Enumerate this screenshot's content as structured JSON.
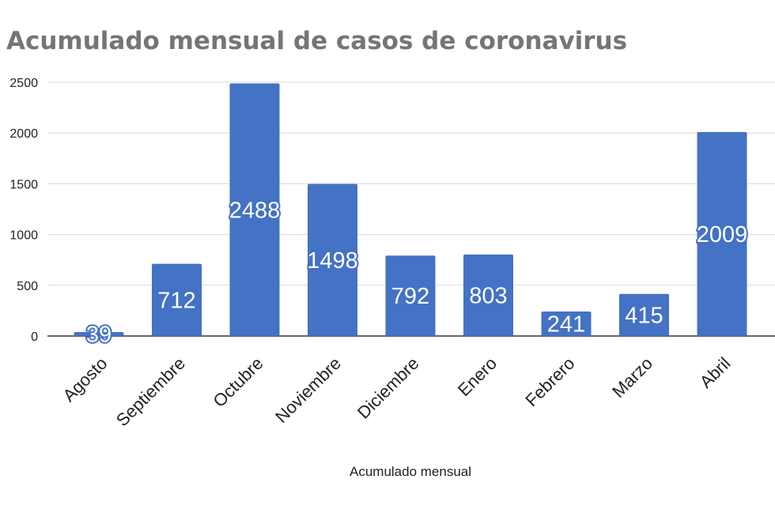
{
  "chart_data": {
    "type": "bar",
    "title": "Acumulado mensual de casos de coronavirus",
    "xlabel": "Acumulado mensual",
    "ylabel": "",
    "categories": [
      "Agosto",
      "Septiembre",
      "Octubre",
      "Noviembre",
      "Diciembre",
      "Enero",
      "Febrero",
      "Marzo",
      "Abril"
    ],
    "values": [
      39,
      712,
      2488,
      1498,
      792,
      803,
      241,
      415,
      2009
    ],
    "ylim": [
      0,
      2500
    ],
    "yticks": [
      0,
      500,
      1000,
      1500,
      2000,
      2500
    ],
    "grid": true,
    "legend": "none",
    "data_labels": true,
    "colors": {
      "bar": "#4472c4",
      "grid": "#d9d9d9",
      "title": "#757575"
    }
  }
}
